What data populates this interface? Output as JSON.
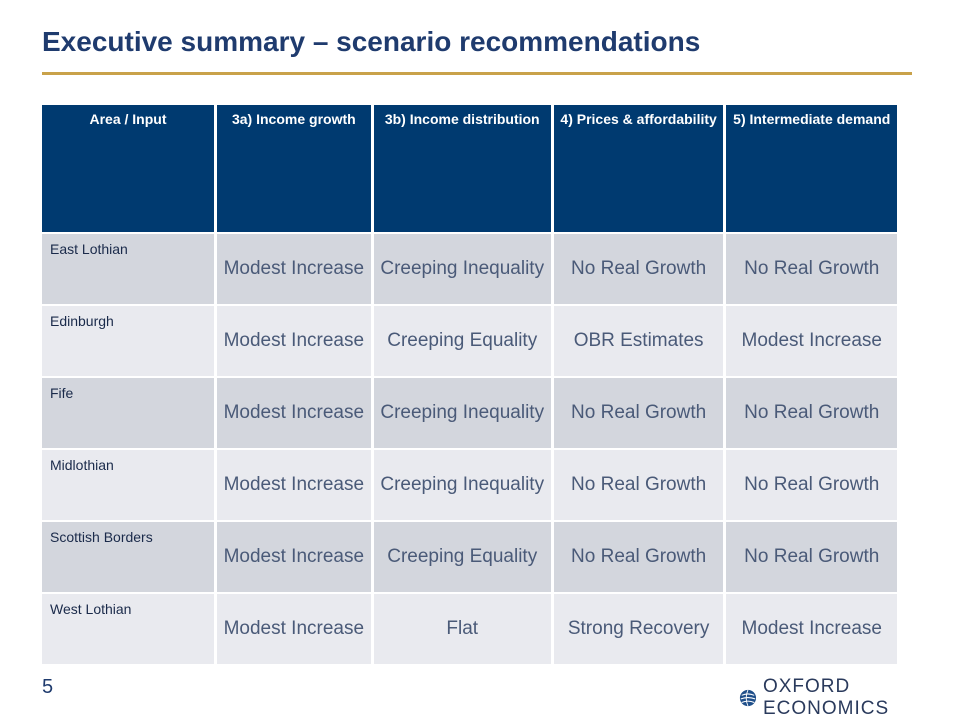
{
  "title": "Executive summary – scenario recommendations",
  "table": {
    "headers": [
      "Area / Input",
      "3a) Income growth",
      "3b) Income distribution",
      "4) Prices & affordability",
      "5) Intermediate demand"
    ],
    "rows": [
      [
        "East Lothian",
        "Modest Increase",
        "Creeping Inequality",
        "No Real Growth",
        "No Real Growth"
      ],
      [
        "Edinburgh",
        "Modest Increase",
        "Creeping Equality",
        "OBR Estimates",
        "Modest Increase"
      ],
      [
        "Fife",
        "Modest Increase",
        "Creeping Inequality",
        "No Real Growth",
        "No Real Growth"
      ],
      [
        "Midlothian",
        "Modest Increase",
        "Creeping Inequality",
        "No Real Growth",
        "No Real Growth"
      ],
      [
        "Scottish Borders",
        "Modest Increase",
        "Creeping Equality",
        "No Real Growth",
        "No Real Growth"
      ],
      [
        "West Lothian",
        "Modest Increase",
        "Flat",
        "Strong Recovery",
        "Modest Increase"
      ]
    ]
  },
  "footer": {
    "page_number": "5",
    "logo_text": "OXFORD ECONOMICS",
    "logo_icon": "globe-icon"
  },
  "colors": {
    "title": "#1f3b6e",
    "accent_rule": "#c9a24a",
    "header_bg": "#003a70",
    "row_odd": "#d3d6dd",
    "row_even": "#e9eaef"
  }
}
